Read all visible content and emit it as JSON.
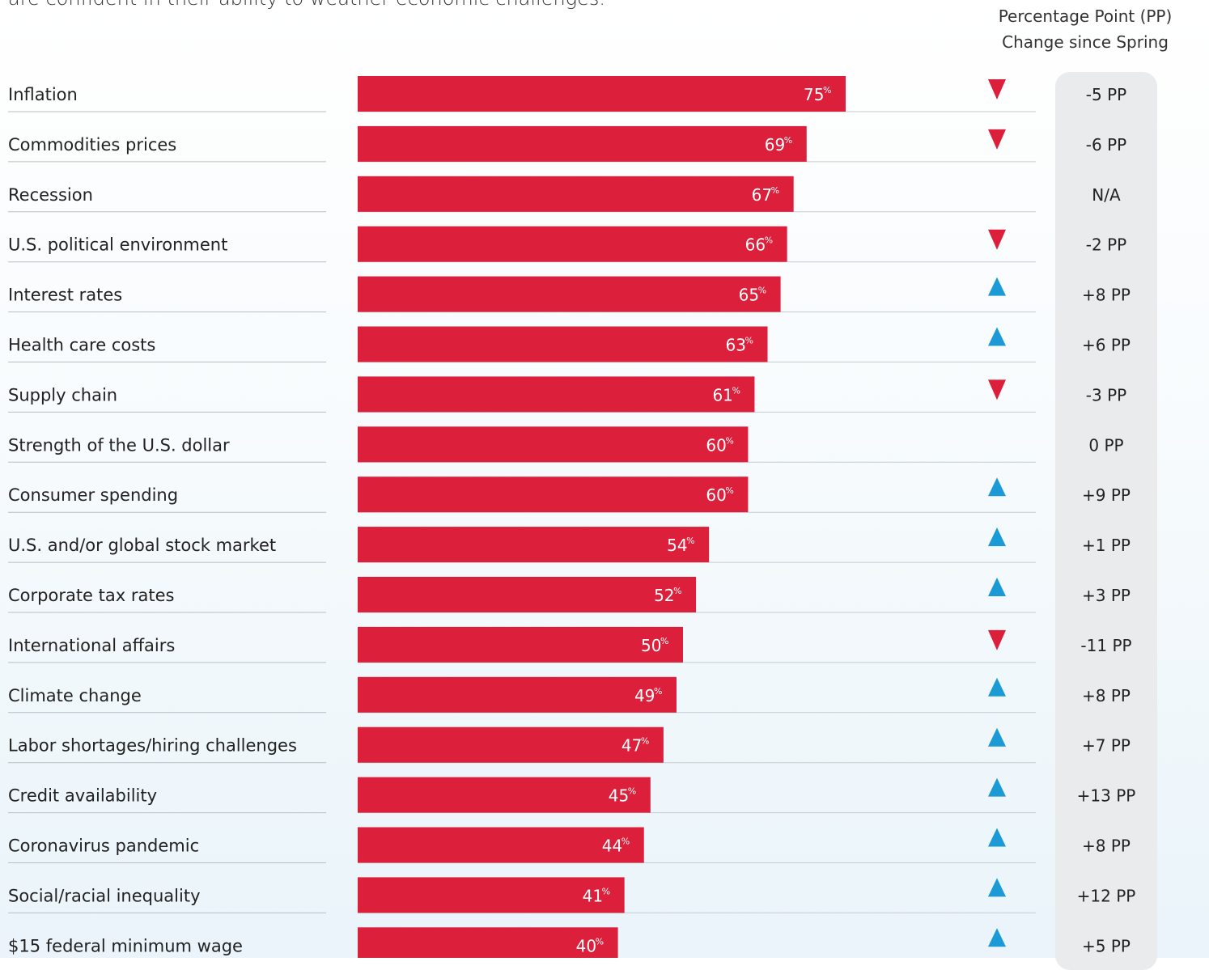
{
  "header": {
    "intro_text": "are confident in their ability to weather economic challenges.",
    "pp_header_line1": "Percentage Point (PP)",
    "pp_header_line2": "Change since Spring"
  },
  "colors": {
    "bar": "#dc1f3a",
    "arrow_up": "#1b9ad6",
    "arrow_down": "#dc1f3a"
  },
  "chart_data": {
    "type": "bar",
    "orientation": "horizontal",
    "value_suffix": "%",
    "categories": [
      "Inflation",
      "Commodities prices",
      "Recession",
      "U.S. political environment",
      "Interest rates",
      "Health care costs",
      "Supply chain",
      "Strength of the U.S. dollar",
      "Consumer spending",
      "U.S. and/or global stock market",
      "Corporate tax rates",
      "International affairs",
      "Climate change",
      "Labor shortages/hiring challenges",
      "Credit availability",
      "Coronavirus pandemic",
      "Social/racial inequality",
      "$15 federal minimum wage"
    ],
    "values": [
      75,
      69,
      67,
      66,
      65,
      63,
      61,
      60,
      60,
      54,
      52,
      50,
      49,
      47,
      45,
      44,
      41,
      40
    ],
    "xlim": [
      0,
      100
    ],
    "pp_change_labels": [
      "-5 PP",
      "-6 PP",
      "N/A",
      "-2 PP",
      "+8 PP",
      "+6 PP",
      "-3 PP",
      "0 PP",
      "+9 PP",
      "+1 PP",
      "+3 PP",
      "-11 PP",
      "+8 PP",
      "+7 PP",
      "+13 PP",
      "+8 PP",
      "+12 PP",
      "+5 PP"
    ],
    "direction": [
      "down",
      "down",
      "none",
      "down",
      "up",
      "up",
      "down",
      "none",
      "up",
      "up",
      "up",
      "down",
      "up",
      "up",
      "up",
      "up",
      "up",
      "up"
    ]
  }
}
